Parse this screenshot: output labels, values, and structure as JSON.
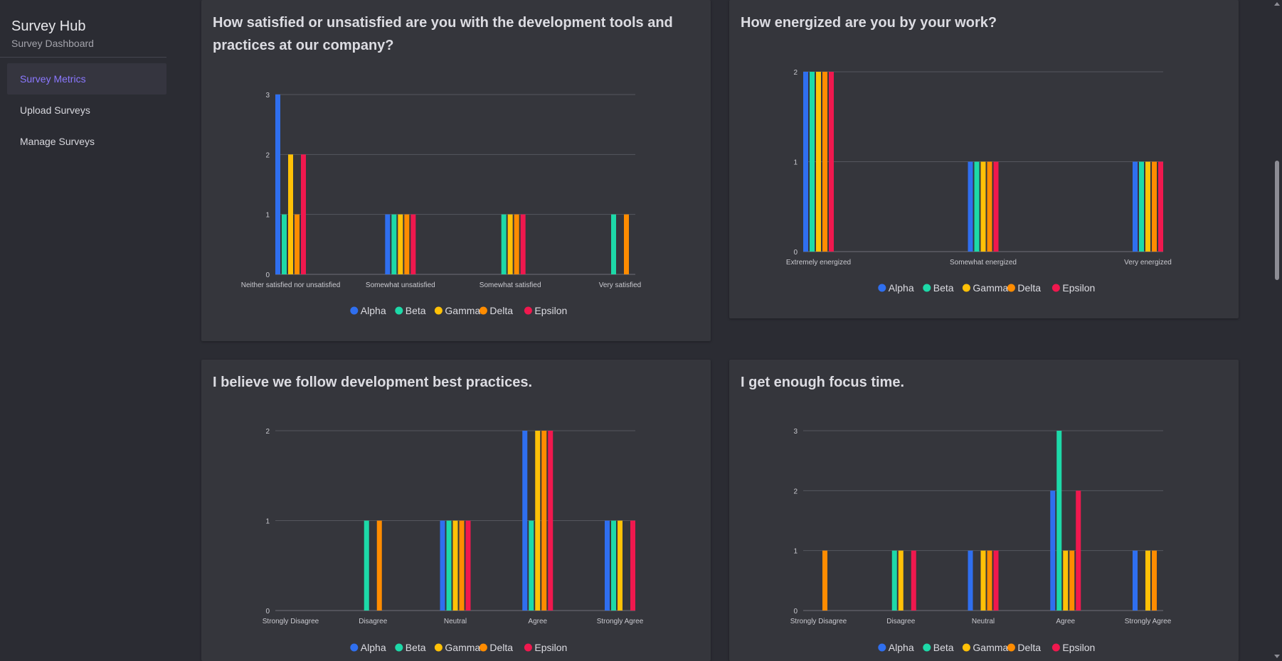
{
  "sidebar": {
    "title": "Survey Hub",
    "subtitle": "Survey Dashboard",
    "items": [
      {
        "label": "Survey Metrics",
        "active": true
      },
      {
        "label": "Upload Surveys",
        "active": false
      },
      {
        "label": "Manage Surveys",
        "active": false
      }
    ]
  },
  "colors": {
    "Alpha": "#2f6fef",
    "Beta": "#1dd9a8",
    "Gamma": "#ffc107",
    "Delta": "#ff8c00",
    "Epsilon": "#f0184e"
  },
  "charts": [
    {
      "title": "How satisfied or unsatisfied are you with the development tools and practices at our company?",
      "chart_data": {
        "type": "bar",
        "categories": [
          "Neither satisfied nor unsatisfied",
          "Somewhat unsatisfied",
          "Somewhat satisfied",
          "Very satisfied"
        ],
        "ylim": [
          0,
          3
        ],
        "yticks": [
          0,
          1,
          2,
          3
        ],
        "legend": "bottom",
        "series": [
          {
            "name": "Alpha",
            "values": [
              3,
              1,
              0,
              0
            ]
          },
          {
            "name": "Beta",
            "values": [
              1,
              1,
              1,
              1
            ]
          },
          {
            "name": "Gamma",
            "values": [
              2,
              1,
              1,
              0
            ]
          },
          {
            "name": "Delta",
            "values": [
              1,
              1,
              1,
              1
            ]
          },
          {
            "name": "Epsilon",
            "values": [
              2,
              1,
              1,
              0
            ]
          }
        ]
      }
    },
    {
      "title": "How energized are you by your work?",
      "chart_data": {
        "type": "bar",
        "categories": [
          "Extremely energized",
          "Somewhat energized",
          "Very energized"
        ],
        "ylim": [
          0,
          2
        ],
        "yticks": [
          0,
          1,
          2
        ],
        "legend": "bottom",
        "series": [
          {
            "name": "Alpha",
            "values": [
              2,
              1,
              1
            ]
          },
          {
            "name": "Beta",
            "values": [
              2,
              1,
              1
            ]
          },
          {
            "name": "Gamma",
            "values": [
              2,
              1,
              1
            ]
          },
          {
            "name": "Delta",
            "values": [
              2,
              1,
              1
            ]
          },
          {
            "name": "Epsilon",
            "values": [
              2,
              1,
              1
            ]
          }
        ]
      }
    },
    {
      "title": "I believe we follow development best practices.",
      "chart_data": {
        "type": "bar",
        "categories": [
          "Strongly Disagree",
          "Disagree",
          "Neutral",
          "Agree",
          "Strongly Agree"
        ],
        "ylim": [
          0,
          2
        ],
        "yticks": [
          0,
          1,
          2
        ],
        "legend": "bottom",
        "series": [
          {
            "name": "Alpha",
            "values": [
              0,
              0,
              1,
              2,
              1
            ]
          },
          {
            "name": "Beta",
            "values": [
              0,
              1,
              1,
              1,
              1
            ]
          },
          {
            "name": "Gamma",
            "values": [
              0,
              0,
              1,
              2,
              1
            ]
          },
          {
            "name": "Delta",
            "values": [
              0,
              1,
              1,
              2,
              0
            ]
          },
          {
            "name": "Epsilon",
            "values": [
              0,
              0,
              1,
              2,
              1
            ]
          }
        ]
      }
    },
    {
      "title": "I get enough focus time.",
      "chart_data": {
        "type": "bar",
        "categories": [
          "Strongly Disagree",
          "Disagree",
          "Neutral",
          "Agree",
          "Strongly Agree"
        ],
        "ylim": [
          0,
          3
        ],
        "yticks": [
          0,
          1,
          2,
          3
        ],
        "legend": "bottom",
        "series": [
          {
            "name": "Alpha",
            "values": [
              0,
              0,
              1,
              2,
              1
            ]
          },
          {
            "name": "Beta",
            "values": [
              0,
              1,
              0,
              3,
              0
            ]
          },
          {
            "name": "Gamma",
            "values": [
              0,
              1,
              1,
              1,
              1
            ]
          },
          {
            "name": "Delta",
            "values": [
              1,
              0,
              1,
              1,
              1
            ]
          },
          {
            "name": "Epsilon",
            "values": [
              0,
              1,
              1,
              2,
              0
            ]
          }
        ]
      }
    }
  ]
}
